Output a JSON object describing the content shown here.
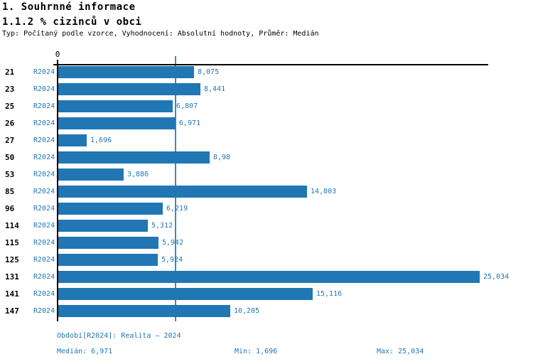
{
  "header": {
    "title": "1. Souhrnné informace",
    "subtitle": "1.1.2 % cizinců v obci",
    "meta": "Typ: Počítaný podle vzorce, Vyhodnocení: Absolutní hodnoty, Průměr: Medián"
  },
  "chart_data": {
    "type": "bar",
    "orientation": "horizontal",
    "title": "1.1.2 % cizinců v obci",
    "categories": [
      "21",
      "23",
      "25",
      "26",
      "27",
      "50",
      "53",
      "85",
      "96",
      "114",
      "115",
      "125",
      "131",
      "141",
      "147"
    ],
    "series": [
      {
        "name": "R2024",
        "values": [
          8.075,
          8.441,
          6.807,
          6.971,
          1.696,
          8.98,
          3.886,
          14.803,
          6.219,
          5.312,
          5.942,
          5.924,
          25.034,
          15.116,
          10.205
        ],
        "value_labels": [
          "8,075",
          "8,441",
          "6,807",
          "6,971",
          "1,696",
          "8,98",
          "3,886",
          "14,803",
          "6,219",
          "5,312",
          "5,942",
          "5,924",
          "25,034",
          "15,116",
          "10,205"
        ]
      }
    ],
    "axis_zero_label": "0",
    "xlim": [
      0,
      25.57
    ],
    "median_value": 6.971,
    "grid": false,
    "legend": "none",
    "bar_color": "#2077b4",
    "label_color": "#2077b4",
    "median_line_color": "#3c89c0"
  },
  "footer": {
    "period": "Období[R2024]: Realita – 2024",
    "median": "Medián: 6,971",
    "min": "Min: 1,696",
    "max": "Max: 25,034"
  }
}
